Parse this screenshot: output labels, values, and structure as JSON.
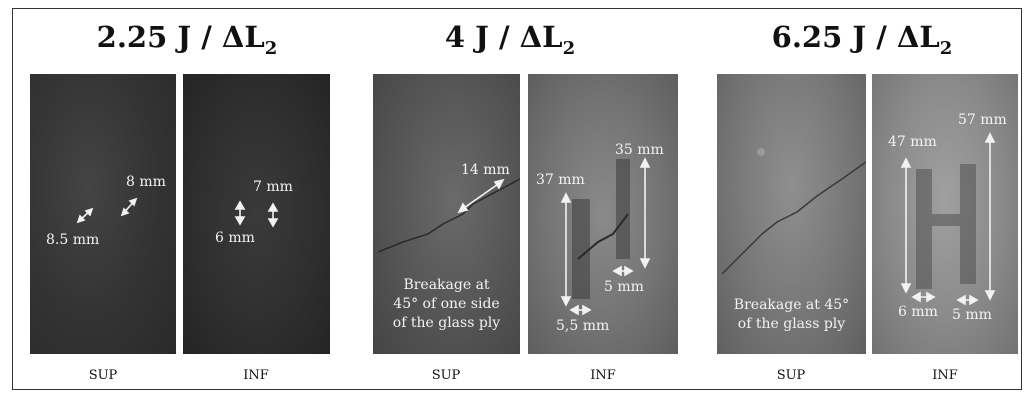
{
  "groups": [
    {
      "title_value": "2.25 J",
      "title_sub": "2",
      "sup": {
        "label": "SUP",
        "measurements": [
          "8.5 mm",
          "8 mm"
        ]
      },
      "inf": {
        "label": "INF",
        "measurements": [
          "7 mm",
          "6 mm"
        ]
      }
    },
    {
      "title_value": "4 J",
      "title_sub": "2",
      "sup": {
        "label": "SUP",
        "measurements": [
          "14 mm"
        ],
        "note": [
          "Breakage at",
          "45° of one side",
          "of the glass ply"
        ]
      },
      "inf": {
        "label": "INF",
        "measurements": [
          "37 mm",
          "35 mm",
          "5 mm",
          "5,5 mm"
        ]
      }
    },
    {
      "title_value": "6.25 J",
      "title_sub": "2",
      "sup": {
        "label": "SUP",
        "note": [
          "Breakage at 45°",
          "of the glass ply"
        ]
      },
      "inf": {
        "label": "INF",
        "measurements": [
          "47 mm",
          "57 mm",
          "6 mm",
          "5 mm"
        ]
      }
    }
  ],
  "title_separator": " / ΔL",
  "colors": {
    "annotation": "#f2f2f2",
    "frame": "#333333"
  }
}
